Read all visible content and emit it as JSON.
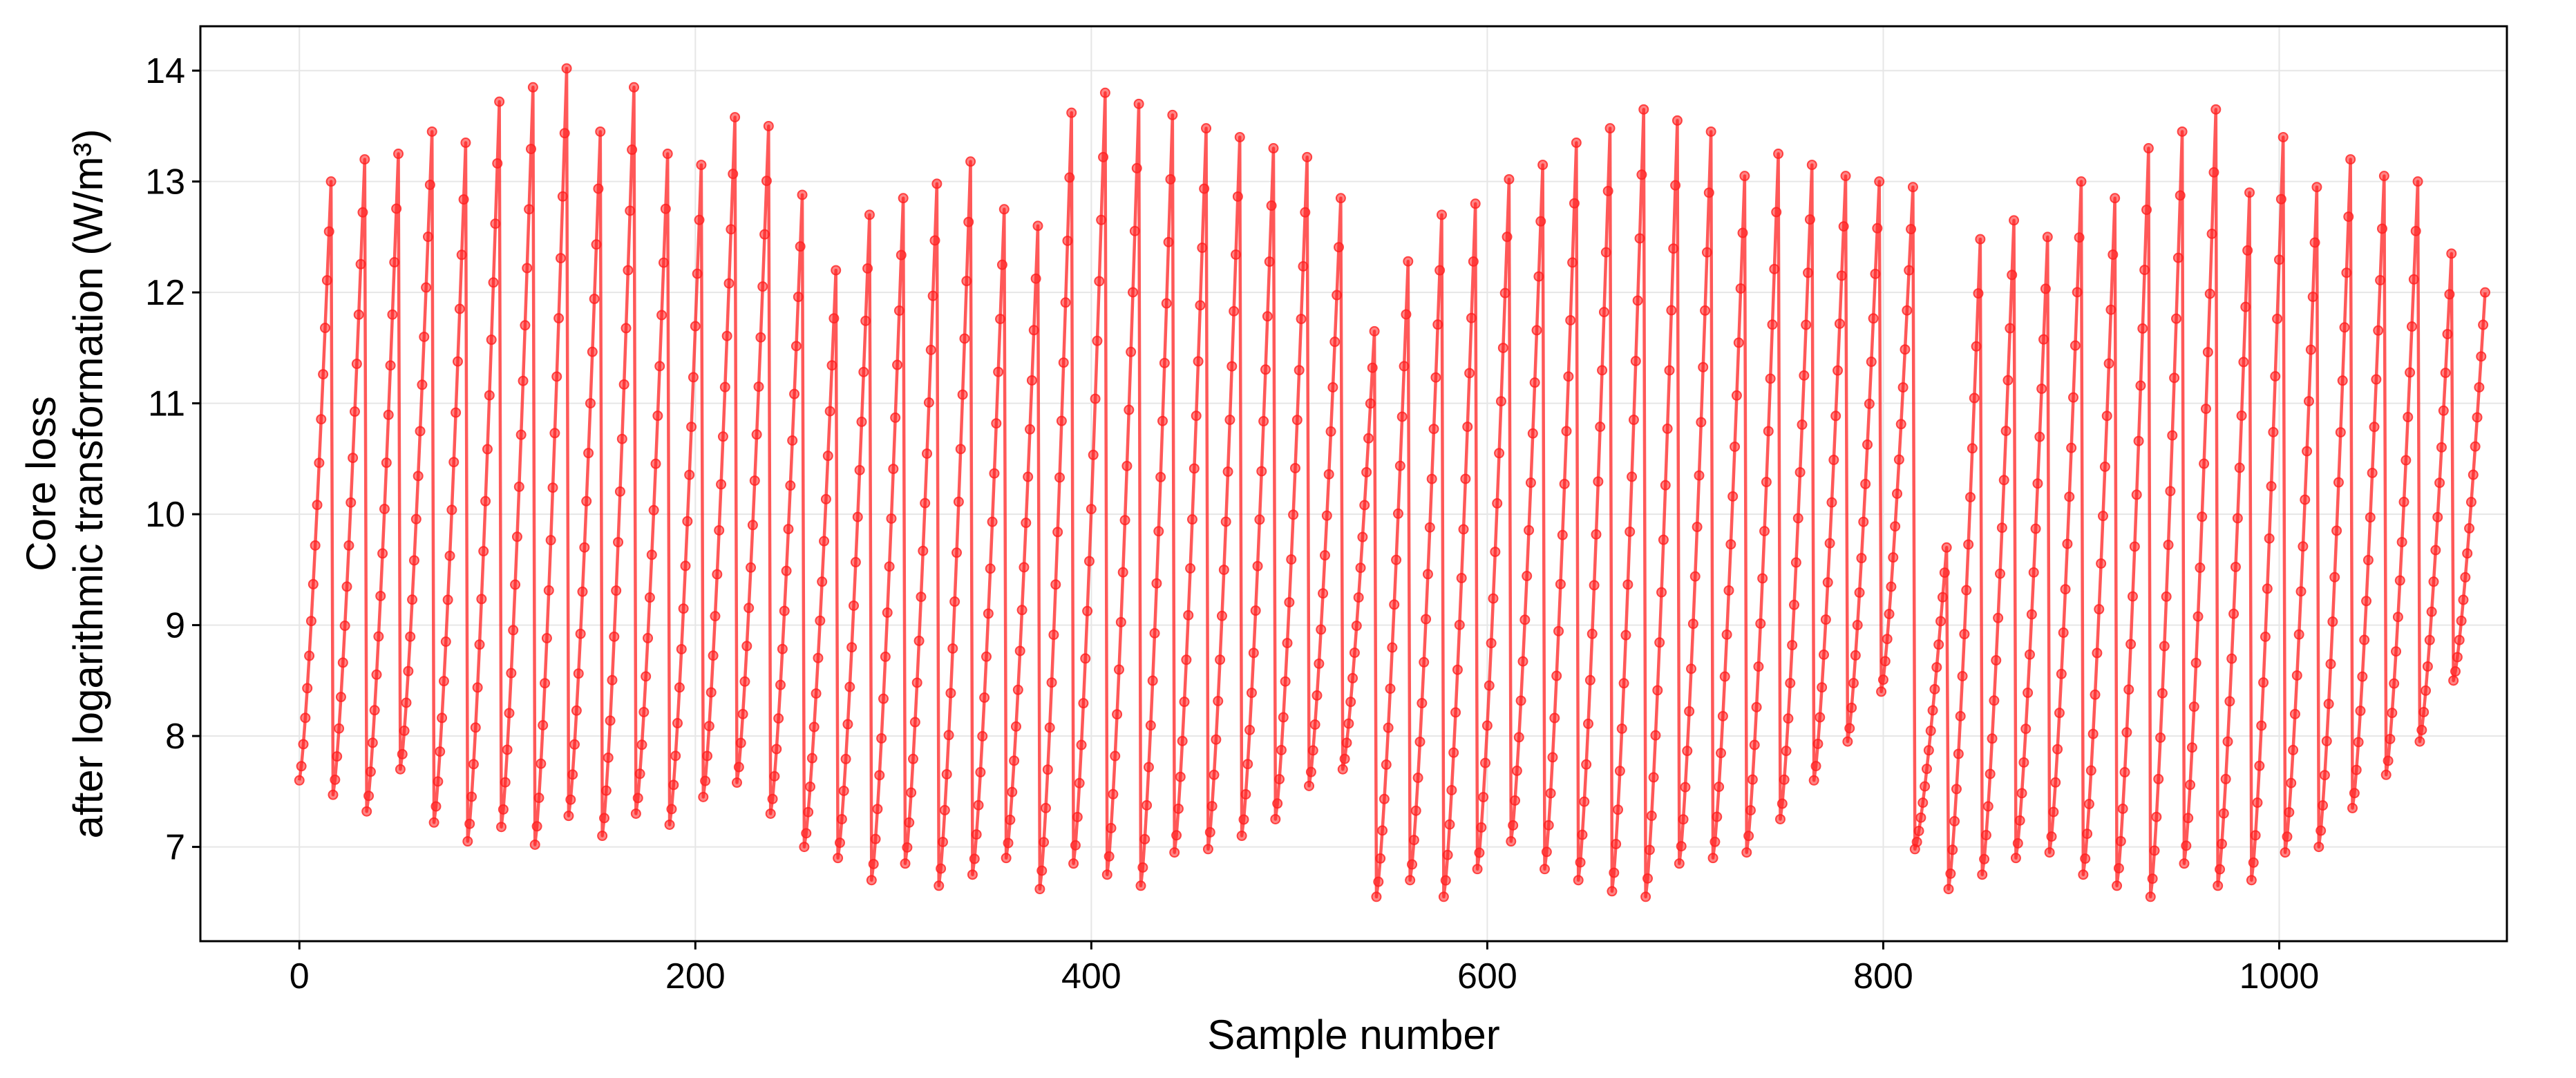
{
  "chart_data": {
    "type": "line",
    "title": "",
    "xlabel": "Sample number",
    "ylabel_lines": [
      "Core loss",
      "after logarithmic transformation (W/m³)"
    ],
    "xlim": [
      -50,
      1115
    ],
    "ylim": [
      6.15,
      14.4
    ],
    "xticks": [
      0,
      200,
      400,
      600,
      800,
      1000
    ],
    "yticks": [
      7,
      8,
      9,
      10,
      11,
      12,
      13,
      14
    ],
    "grid": true,
    "legend": "none",
    "color": "#ff2020",
    "series": [
      {
        "name": "",
        "points_per_cycle": 17,
        "cycle_minima": [
          7.6,
          7.47,
          7.32,
          7.7,
          7.22,
          7.05,
          7.18,
          7.02,
          7.28,
          7.1,
          7.3,
          7.2,
          7.45,
          7.58,
          7.3,
          7.0,
          6.9,
          6.7,
          6.85,
          6.65,
          6.75,
          6.9,
          6.62,
          6.85,
          6.75,
          6.65,
          6.95,
          6.98,
          7.1,
          7.25,
          7.55,
          7.7,
          6.55,
          6.7,
          6.55,
          6.8,
          7.05,
          6.8,
          6.7,
          6.6,
          6.55,
          6.85,
          6.9,
          6.95,
          7.25,
          7.6,
          7.95,
          8.4,
          6.98,
          6.62,
          6.75,
          6.9,
          6.95,
          6.75,
          6.65,
          6.55,
          6.85,
          6.65,
          6.7,
          6.95,
          7.0,
          7.35,
          7.65,
          7.95,
          8.5
        ],
        "cycle_maxima": [
          13.0,
          13.2,
          13.25,
          13.45,
          13.35,
          13.72,
          13.85,
          14.02,
          13.45,
          13.85,
          13.25,
          13.15,
          13.58,
          13.5,
          12.88,
          12.2,
          12.7,
          12.85,
          12.98,
          13.18,
          12.75,
          12.6,
          13.62,
          13.8,
          13.7,
          13.6,
          13.48,
          13.4,
          13.3,
          13.22,
          12.85,
          11.65,
          12.28,
          12.7,
          12.8,
          13.02,
          13.15,
          13.35,
          13.48,
          13.65,
          13.55,
          13.45,
          13.05,
          13.25,
          13.15,
          13.05,
          13.0,
          12.95,
          9.7,
          12.48,
          12.65,
          12.5,
          13.0,
          12.85,
          13.3,
          13.45,
          13.65,
          12.9,
          13.4,
          12.95,
          13.2,
          13.05,
          13.0,
          12.35,
          12.0
        ]
      }
    ]
  }
}
